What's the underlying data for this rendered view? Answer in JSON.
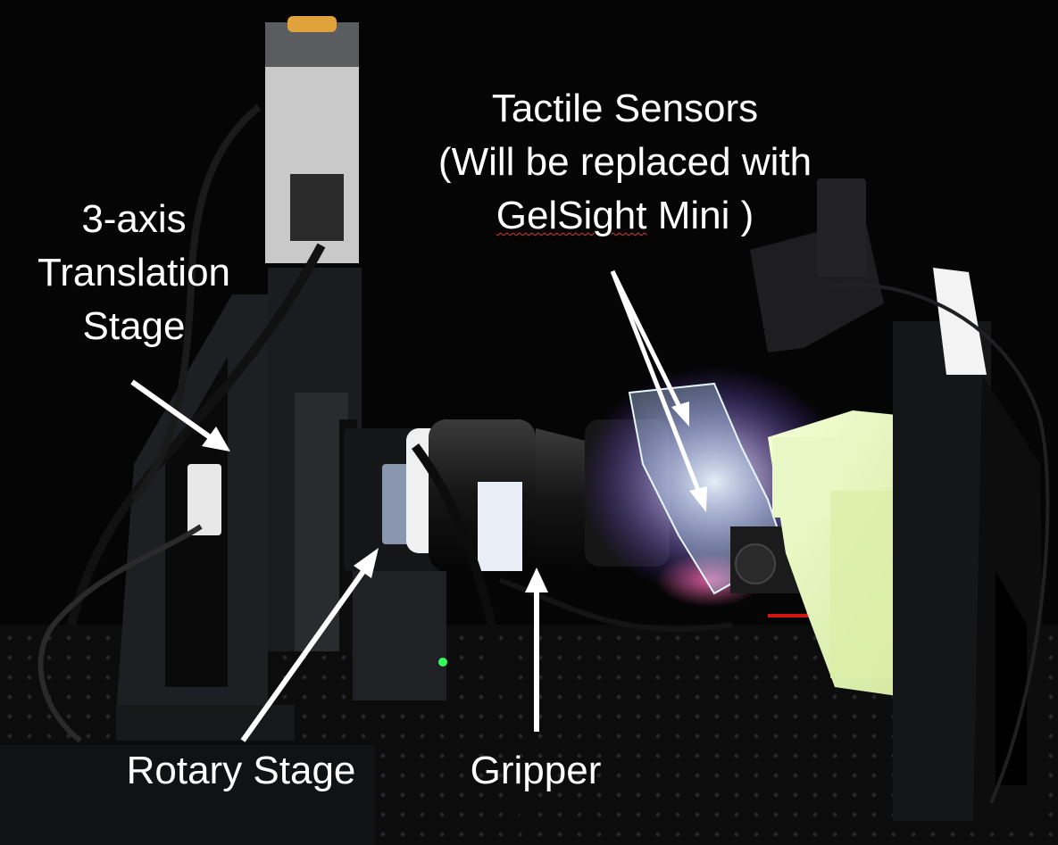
{
  "labels": {
    "translation_stage": [
      "3-axis",
      "Translation",
      "Stage"
    ],
    "tactile_sensors": {
      "line1": "Tactile Sensors",
      "line2": "(Will be replaced with",
      "line3_word": "GelSight",
      "line3_rest": " Mini )"
    },
    "rotary_stage": "Rotary Stage",
    "gripper": "Gripper"
  },
  "colors": {
    "background": "#000000",
    "label_text": "#ffffff",
    "arrow": "#ffffff",
    "spellcheck_underline": "#d23a3a"
  }
}
